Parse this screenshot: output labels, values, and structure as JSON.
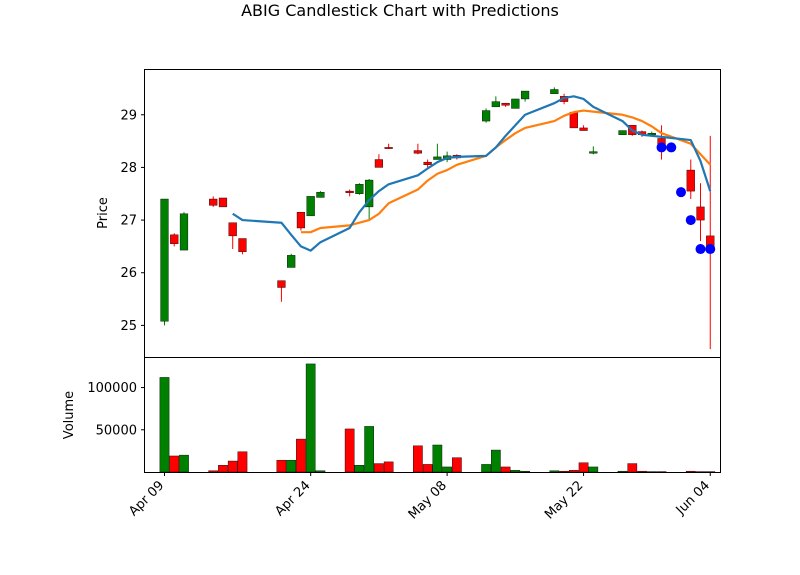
{
  "chart_data": {
    "type": "candlestick",
    "title": "ABIG Candlestick Chart with Predictions",
    "colors": {
      "up": "#008000",
      "down": "#ff0000",
      "ma_short": "#1f77b4",
      "ma_long": "#ff7f0e",
      "prediction": "#0000ff"
    },
    "price_axis": {
      "ylabel": "Price",
      "ylim": [
        24.4,
        29.85
      ],
      "ticks": [
        25,
        26,
        27,
        28,
        29
      ],
      "tick_labels": [
        "25",
        "26",
        "27",
        "28",
        "29"
      ]
    },
    "volume_axis": {
      "ylabel": "Volume",
      "ylim": [
        0,
        135000
      ],
      "ticks": [
        50000,
        100000
      ],
      "tick_labels": [
        "50000",
        "100000"
      ]
    },
    "x_axis": {
      "xlim": [
        "2025-04-07",
        "2025-06-05"
      ],
      "tick_dates": [
        "2025-04-09",
        "2025-04-24",
        "2025-05-08",
        "2025-05-22",
        "2025-06-04"
      ],
      "tick_labels": [
        "Apr 09",
        "Apr 24",
        "May 08",
        "May 22",
        "Jun 04"
      ]
    },
    "candles": [
      {
        "date": "2025-04-09",
        "open": 25.08,
        "high": 27.4,
        "low": 25.0,
        "close": 27.4,
        "volume": 112000
      },
      {
        "date": "2025-04-10",
        "open": 26.72,
        "high": 26.75,
        "low": 26.5,
        "close": 26.55,
        "volume": 19000
      },
      {
        "date": "2025-04-11",
        "open": 26.43,
        "high": 27.15,
        "low": 26.43,
        "close": 27.12,
        "volume": 20000
      },
      {
        "date": "2025-04-14",
        "open": 27.4,
        "high": 27.45,
        "low": 27.25,
        "close": 27.28,
        "volume": 1500
      },
      {
        "date": "2025-04-15",
        "open": 27.42,
        "high": 27.42,
        "low": 27.25,
        "close": 27.25,
        "volume": 8000
      },
      {
        "date": "2025-04-16",
        "open": 26.95,
        "high": 26.95,
        "low": 26.45,
        "close": 26.7,
        "volume": 13000
      },
      {
        "date": "2025-04-17",
        "open": 26.65,
        "high": 26.65,
        "low": 26.35,
        "close": 26.4,
        "volume": 24000
      },
      {
        "date": "2025-04-21",
        "open": 25.85,
        "high": 25.85,
        "low": 25.45,
        "close": 25.72,
        "volume": 14000
      },
      {
        "date": "2025-04-22",
        "open": 26.1,
        "high": 26.36,
        "low": 26.1,
        "close": 26.33,
        "volume": 14000
      },
      {
        "date": "2025-04-23",
        "open": 27.15,
        "high": 27.15,
        "low": 26.8,
        "close": 26.85,
        "volume": 39000
      },
      {
        "date": "2025-04-24",
        "open": 27.08,
        "high": 27.45,
        "low": 27.08,
        "close": 27.45,
        "volume": 128000
      },
      {
        "date": "2025-04-25",
        "open": 27.43,
        "high": 27.55,
        "low": 27.43,
        "close": 27.53,
        "volume": 1500
      },
      {
        "date": "2025-04-28",
        "open": 27.55,
        "high": 27.58,
        "low": 27.45,
        "close": 27.52,
        "volume": 51000
      },
      {
        "date": "2025-04-29",
        "open": 27.5,
        "high": 27.7,
        "low": 27.48,
        "close": 27.68,
        "volume": 8000
      },
      {
        "date": "2025-04-30",
        "open": 27.25,
        "high": 27.78,
        "low": 27.0,
        "close": 27.76,
        "volume": 54000
      },
      {
        "date": "2025-05-01",
        "open": 28.15,
        "high": 28.25,
        "low": 28.0,
        "close": 28.0,
        "volume": 10000
      },
      {
        "date": "2025-05-02",
        "open": 28.38,
        "high": 28.45,
        "low": 28.35,
        "close": 28.36,
        "volume": 12000
      },
      {
        "date": "2025-05-05",
        "open": 28.32,
        "high": 28.45,
        "low": 28.25,
        "close": 28.27,
        "volume": 31000
      },
      {
        "date": "2025-05-06",
        "open": 28.1,
        "high": 28.15,
        "low": 28.0,
        "close": 28.05,
        "volume": 9000
      },
      {
        "date": "2025-05-07",
        "open": 28.15,
        "high": 28.45,
        "low": 28.15,
        "close": 28.2,
        "volume": 32000
      },
      {
        "date": "2025-05-08",
        "open": 28.15,
        "high": 28.3,
        "low": 28.1,
        "close": 28.22,
        "volume": 6000
      },
      {
        "date": "2025-05-09",
        "open": 28.23,
        "high": 28.25,
        "low": 28.15,
        "close": 28.18,
        "volume": 17000
      },
      {
        "date": "2025-05-12",
        "open": 28.88,
        "high": 29.12,
        "low": 28.85,
        "close": 29.08,
        "volume": 9000
      },
      {
        "date": "2025-05-13",
        "open": 29.15,
        "high": 29.35,
        "low": 29.15,
        "close": 29.25,
        "volume": 26000
      },
      {
        "date": "2025-05-14",
        "open": 29.22,
        "high": 29.22,
        "low": 29.15,
        "close": 29.18,
        "volume": 6000
      },
      {
        "date": "2025-05-15",
        "open": 29.12,
        "high": 29.3,
        "low": 29.12,
        "close": 29.3,
        "volume": 2000
      },
      {
        "date": "2025-05-16",
        "open": 29.3,
        "high": 29.45,
        "low": 29.25,
        "close": 29.45,
        "volume": 1000
      },
      {
        "date": "2025-05-19",
        "open": 29.4,
        "high": 29.52,
        "low": 29.4,
        "close": 29.48,
        "volume": 1500
      },
      {
        "date": "2025-05-20",
        "open": 29.35,
        "high": 29.4,
        "low": 29.2,
        "close": 29.25,
        "volume": 1000
      },
      {
        "date": "2025-05-21",
        "open": 29.05,
        "high": 29.05,
        "low": 28.75,
        "close": 28.75,
        "volume": 2000
      },
      {
        "date": "2025-05-22",
        "open": 28.75,
        "high": 28.8,
        "low": 28.7,
        "close": 28.7,
        "volume": 11000
      },
      {
        "date": "2025-05-23",
        "open": 28.27,
        "high": 28.4,
        "low": 28.25,
        "close": 28.3,
        "volume": 6000
      },
      {
        "date": "2025-05-26",
        "open": 28.62,
        "high": 28.7,
        "low": 28.62,
        "close": 28.7,
        "volume": 1000
      },
      {
        "date": "2025-05-27",
        "open": 28.8,
        "high": 28.8,
        "low": 28.6,
        "close": 28.62,
        "volume": 10000
      },
      {
        "date": "2025-05-28",
        "open": 28.68,
        "high": 28.7,
        "low": 28.58,
        "close": 28.62,
        "volume": 1000
      },
      {
        "date": "2025-05-29",
        "open": 28.62,
        "high": 28.68,
        "low": 28.58,
        "close": 28.65,
        "volume": 500
      },
      {
        "date": "2025-05-30",
        "open": 28.55,
        "high": 28.8,
        "low": 28.15,
        "close": 28.38,
        "volume": 500
      },
      {
        "date": "2025-06-02",
        "open": 27.95,
        "high": 28.15,
        "low": 27.4,
        "close": 27.55,
        "volume": 1000
      },
      {
        "date": "2025-06-03",
        "open": 27.25,
        "high": 27.7,
        "low": 26.6,
        "close": 27.0,
        "volume": 500
      },
      {
        "date": "2025-06-04",
        "open": 26.7,
        "high": 28.6,
        "low": 24.55,
        "close": 26.45,
        "volume": 500
      }
    ],
    "ma_short": {
      "dates": [
        "2025-04-16",
        "2025-04-17",
        "2025-04-21",
        "2025-04-22",
        "2025-04-23",
        "2025-04-24",
        "2025-04-25",
        "2025-04-28",
        "2025-04-29",
        "2025-04-30",
        "2025-05-01",
        "2025-05-02",
        "2025-05-05",
        "2025-05-06",
        "2025-05-07",
        "2025-05-08",
        "2025-05-09",
        "2025-05-12",
        "2025-05-13",
        "2025-05-14",
        "2025-05-15",
        "2025-05-16",
        "2025-05-19",
        "2025-05-20",
        "2025-05-21",
        "2025-05-22",
        "2025-05-23",
        "2025-05-26",
        "2025-05-27",
        "2025-05-28",
        "2025-05-29",
        "2025-05-30",
        "2025-06-02",
        "2025-06-03",
        "2025-06-04"
      ],
      "values": [
        27.12,
        27.0,
        26.95,
        26.72,
        26.5,
        26.42,
        26.58,
        26.85,
        27.15,
        27.38,
        27.55,
        27.68,
        27.85,
        27.98,
        28.1,
        28.18,
        28.2,
        28.22,
        28.38,
        28.6,
        28.8,
        29.0,
        29.22,
        29.32,
        29.35,
        29.3,
        29.15,
        28.88,
        28.7,
        28.62,
        28.6,
        28.58,
        28.52,
        28.12,
        27.55
      ]
    },
    "ma_long": {
      "dates": [
        "2025-04-23",
        "2025-04-24",
        "2025-04-25",
        "2025-04-28",
        "2025-04-29",
        "2025-04-30",
        "2025-05-01",
        "2025-05-02",
        "2025-05-05",
        "2025-05-06",
        "2025-05-07",
        "2025-05-08",
        "2025-05-09",
        "2025-05-12",
        "2025-05-13",
        "2025-05-14",
        "2025-05-15",
        "2025-05-16",
        "2025-05-19",
        "2025-05-20",
        "2025-05-21",
        "2025-05-22",
        "2025-05-23",
        "2025-05-26",
        "2025-05-27",
        "2025-05-28",
        "2025-05-29",
        "2025-05-30",
        "2025-06-02",
        "2025-06-03",
        "2025-06-04"
      ],
      "values": [
        26.77,
        26.77,
        26.85,
        26.9,
        26.95,
        27.0,
        27.12,
        27.32,
        27.58,
        27.75,
        27.88,
        27.95,
        28.05,
        28.22,
        28.38,
        28.52,
        28.65,
        28.75,
        28.88,
        28.98,
        29.05,
        29.08,
        29.06,
        29.0,
        28.95,
        28.88,
        28.78,
        28.65,
        28.45,
        28.25,
        28.05
      ]
    },
    "predictions": {
      "dates": [
        "2025-05-30",
        "2025-05-31",
        "2025-06-01",
        "2025-06-02",
        "2025-06-03",
        "2025-06-04"
      ],
      "values": [
        28.38,
        28.38,
        27.53,
        27.0,
        26.45,
        26.45
      ]
    }
  }
}
